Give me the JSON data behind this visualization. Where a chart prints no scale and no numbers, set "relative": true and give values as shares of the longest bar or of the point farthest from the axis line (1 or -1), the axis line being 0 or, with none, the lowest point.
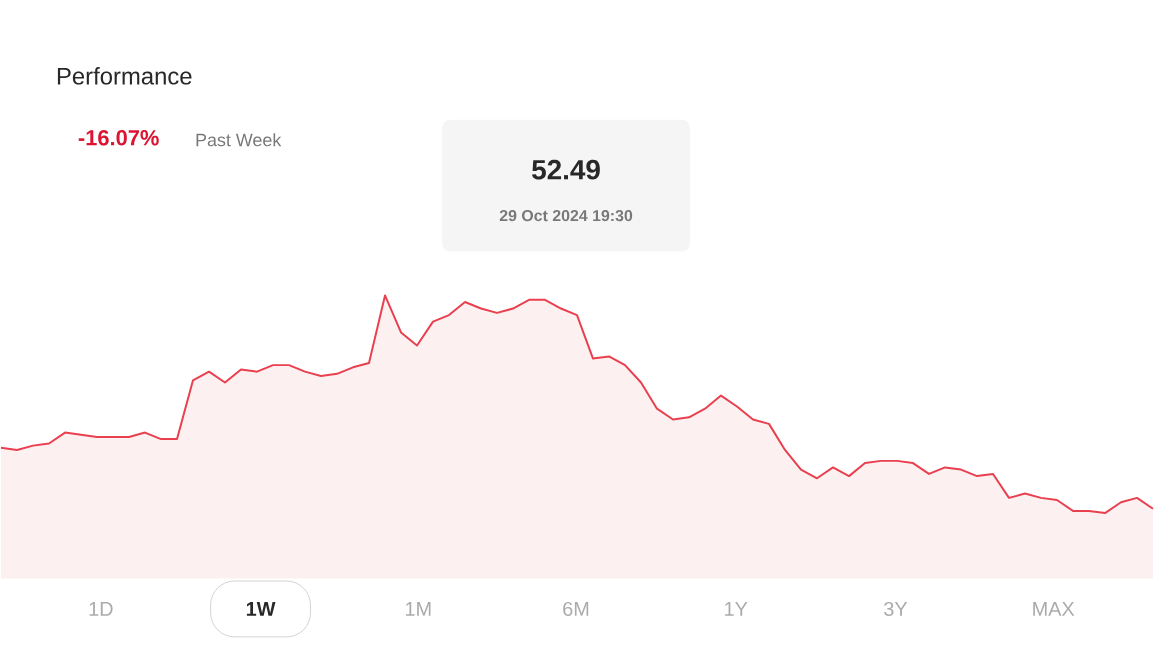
{
  "chart_data": {
    "type": "area",
    "title": "Performance",
    "subtitle": "-16.07%",
    "relative": true,
    "categories": [
      null,
      null,
      null,
      null,
      null,
      null,
      null,
      null,
      null,
      null,
      null,
      null,
      null,
      null,
      null,
      null,
      null,
      null,
      null,
      null,
      null,
      null,
      null,
      null,
      null,
      null,
      null,
      null,
      null,
      null,
      null,
      null,
      null,
      null,
      null,
      null,
      null,
      null,
      null,
      null,
      null,
      null,
      null,
      null,
      null,
      null,
      null,
      null,
      null,
      null,
      null,
      null,
      null,
      null,
      null,
      null,
      null,
      null,
      null,
      null,
      null,
      null,
      null,
      null,
      null,
      null,
      null,
      null,
      null,
      null,
      null,
      null,
      null
    ],
    "series": [
      {
        "color": "#e8404f",
        "values": [
          0.3,
          0.29,
          0.31,
          0.32,
          0.37,
          0.36,
          0.35,
          0.35,
          0.35,
          0.37,
          0.34,
          0.34,
          0.61,
          0.65,
          0.6,
          0.66,
          0.65,
          0.68,
          0.68,
          0.65,
          0.63,
          0.64,
          0.67,
          0.69,
          1.0,
          0.83,
          0.77,
          0.88,
          0.91,
          0.97,
          0.94,
          0.92,
          0.94,
          0.98,
          0.98,
          0.94,
          0.91,
          0.71,
          0.72,
          0.68,
          0.6,
          0.48,
          0.43,
          0.44,
          0.48,
          0.54,
          0.49,
          0.43,
          0.41,
          0.29,
          0.2,
          0.16,
          0.21,
          0.17,
          0.23,
          0.24,
          0.24,
          0.23,
          0.18,
          0.21,
          0.2,
          0.17,
          0.18,
          0.07,
          0.09,
          0.07,
          0.06,
          0.01,
          0.01,
          0.0,
          0.05,
          0.07,
          0.02
        ]
      }
    ],
    "annotations": [
      "Past Week",
      "52.49",
      "29 Oct 2024 19:30",
      "1D",
      "1W",
      "1M",
      "6M",
      "1Y",
      "3Y",
      "MAX"
    ]
  }
}
